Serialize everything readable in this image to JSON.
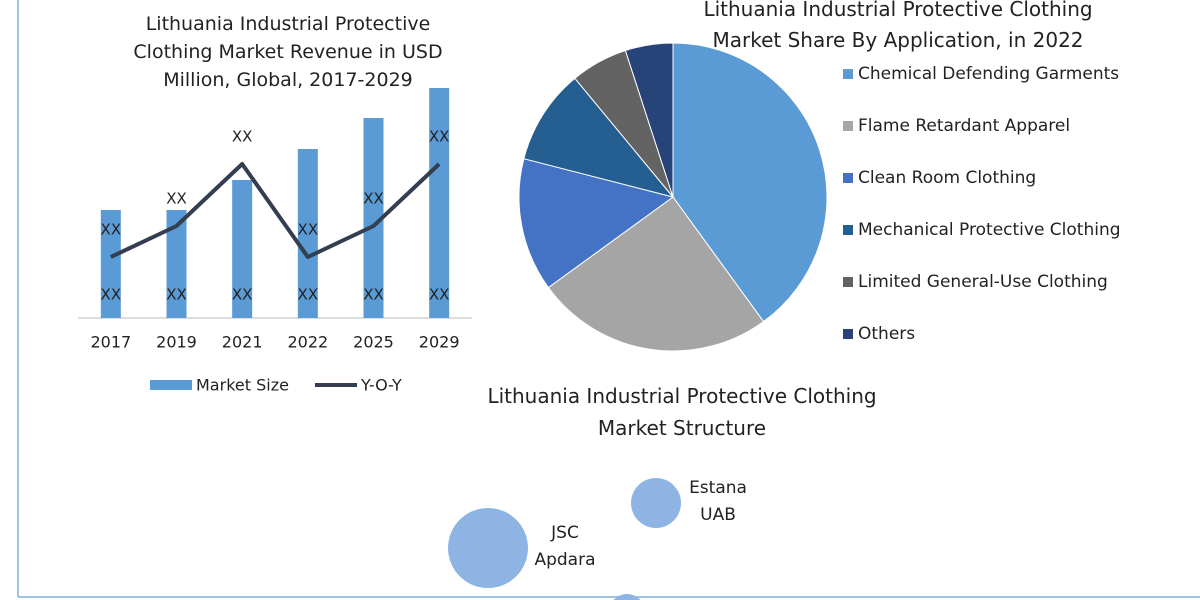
{
  "chart_data": [
    {
      "type": "combo",
      "title": "Lithuania Industrial Protective Clothing Market Revenue in USD Million, Global, 2017-2029",
      "categories": [
        "2017",
        "2019",
        "2021",
        "2022",
        "2025",
        "2029"
      ],
      "series": [
        {
          "name": "Market Size",
          "type": "bar",
          "color": "#5b9bd5",
          "values": [
            108,
            108,
            138,
            169,
            200,
            230
          ],
          "value_labels": [
            "XX",
            "XX",
            "XX",
            "XX",
            "XX",
            "XX"
          ]
        },
        {
          "name": "Y-O-Y",
          "type": "line",
          "color": "#333f50",
          "values": [
            61,
            92,
            154,
            61,
            92,
            154
          ],
          "value_labels": [
            "XX",
            "XX",
            "XX",
            "XX",
            "XX",
            "XX"
          ]
        }
      ],
      "legend": "bottom"
    },
    {
      "type": "pie",
      "title": "Lithuania Industrial Protective Clothing Market Share By Application, in 2022",
      "categories": [
        "Chemical Defending Garments",
        "Flame Retardant Apparel",
        "Clean Room Clothing",
        "Mechanical Protective Clothing",
        "Limited General-Use Clothing",
        "Others"
      ],
      "values": [
        40,
        25,
        14,
        10,
        6,
        5
      ],
      "colors": [
        "#5b9bd5",
        "#a5a5a5",
        "#4472c4",
        "#255e91",
        "#636363",
        "#264478"
      ],
      "legend": "right"
    },
    {
      "type": "bubble",
      "title": "Lithuania Industrial Protective Clothing Market Structure",
      "categories": [
        "JSC Apdara",
        "Estana UAB",
        null
      ],
      "values": [
        40,
        25,
        18
      ],
      "color": "#8db4e2"
    }
  ]
}
